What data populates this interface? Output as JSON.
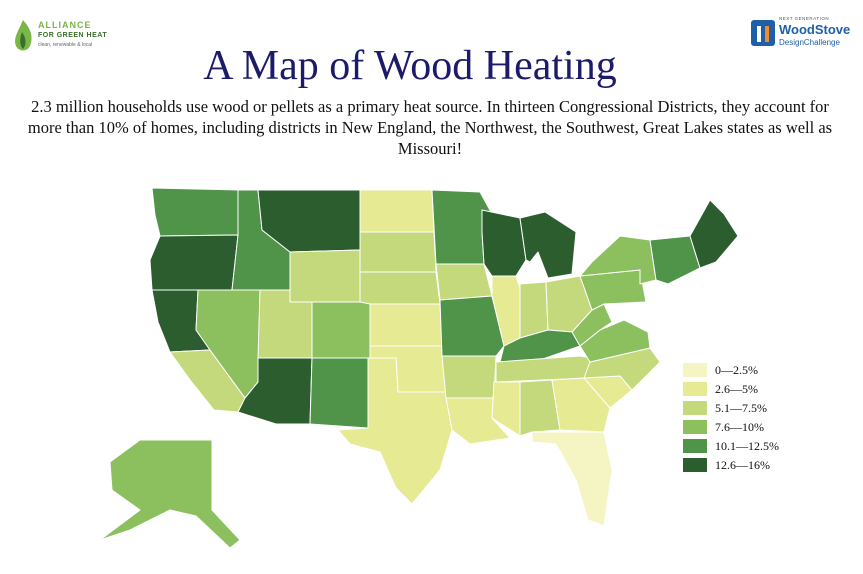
{
  "header": {
    "title": "A Map of Wood Heating",
    "subtitle": "2.3 million households use wood or pellets as a primary heat source. In thirteen Congressional Districts, they account for more than 10% of homes, including districts in New England, the Northwest, the Southwest, Great Lakes states as well as Missouri!"
  },
  "logos": {
    "left": {
      "name": "ALLIANCE",
      "line2": "FOR GREEN HEAT",
      "tagline": "clean, renewable & local"
    },
    "right": {
      "top": "NEXT GENERATION",
      "name": "WoodStove",
      "sub": "DesignChallenge"
    }
  },
  "legend": {
    "items": [
      {
        "label": "0—2.5%",
        "color": "#f5f5c4"
      },
      {
        "label": "2.6—5%",
        "color": "#e6ea92"
      },
      {
        "label": "5.1—7.5%",
        "color": "#c4d97c"
      },
      {
        "label": "7.6—10%",
        "color": "#8cbf5e"
      },
      {
        "label": "10.1—12.5%",
        "color": "#4f9448"
      },
      {
        "label": "12.6—16%",
        "color": "#2b5d2e"
      }
    ]
  },
  "regions": [
    {
      "name": "washington",
      "level": 4
    },
    {
      "name": "oregon",
      "level": 5
    },
    {
      "name": "california-north",
      "level": 5
    },
    {
      "name": "california-south",
      "level": 2
    },
    {
      "name": "nevada",
      "level": 3
    },
    {
      "name": "idaho",
      "level": 4
    },
    {
      "name": "montana",
      "level": 5
    },
    {
      "name": "wyoming",
      "level": 2
    },
    {
      "name": "utah",
      "level": 2
    },
    {
      "name": "arizona",
      "level": 5
    },
    {
      "name": "colorado",
      "level": 3
    },
    {
      "name": "new-mexico",
      "level": 4
    },
    {
      "name": "north-dakota",
      "level": 1
    },
    {
      "name": "south-dakota",
      "level": 2
    },
    {
      "name": "nebraska",
      "level": 2
    },
    {
      "name": "kansas",
      "level": 1
    },
    {
      "name": "oklahoma",
      "level": 1
    },
    {
      "name": "texas",
      "level": 1
    },
    {
      "name": "minnesota",
      "level": 4
    },
    {
      "name": "iowa",
      "level": 2
    },
    {
      "name": "missouri",
      "level": 4
    },
    {
      "name": "arkansas",
      "level": 2
    },
    {
      "name": "louisiana",
      "level": 1
    },
    {
      "name": "wisconsin",
      "level": 5
    },
    {
      "name": "illinois",
      "level": 1
    },
    {
      "name": "michigan",
      "level": 5
    },
    {
      "name": "indiana",
      "level": 2
    },
    {
      "name": "ohio",
      "level": 2
    },
    {
      "name": "kentucky",
      "level": 4
    },
    {
      "name": "tennessee",
      "level": 2
    },
    {
      "name": "mississippi",
      "level": 1
    },
    {
      "name": "alabama",
      "level": 2
    },
    {
      "name": "georgia",
      "level": 1
    },
    {
      "name": "florida",
      "level": 0
    },
    {
      "name": "south-carolina",
      "level": 1
    },
    {
      "name": "north-carolina",
      "level": 2
    },
    {
      "name": "virginia",
      "level": 3
    },
    {
      "name": "west-virginia",
      "level": 3
    },
    {
      "name": "pennsylvania",
      "level": 3
    },
    {
      "name": "new-york",
      "level": 3
    },
    {
      "name": "new-england",
      "level": 4
    },
    {
      "name": "maine",
      "level": 5
    },
    {
      "name": "alaska",
      "level": 3
    }
  ]
}
